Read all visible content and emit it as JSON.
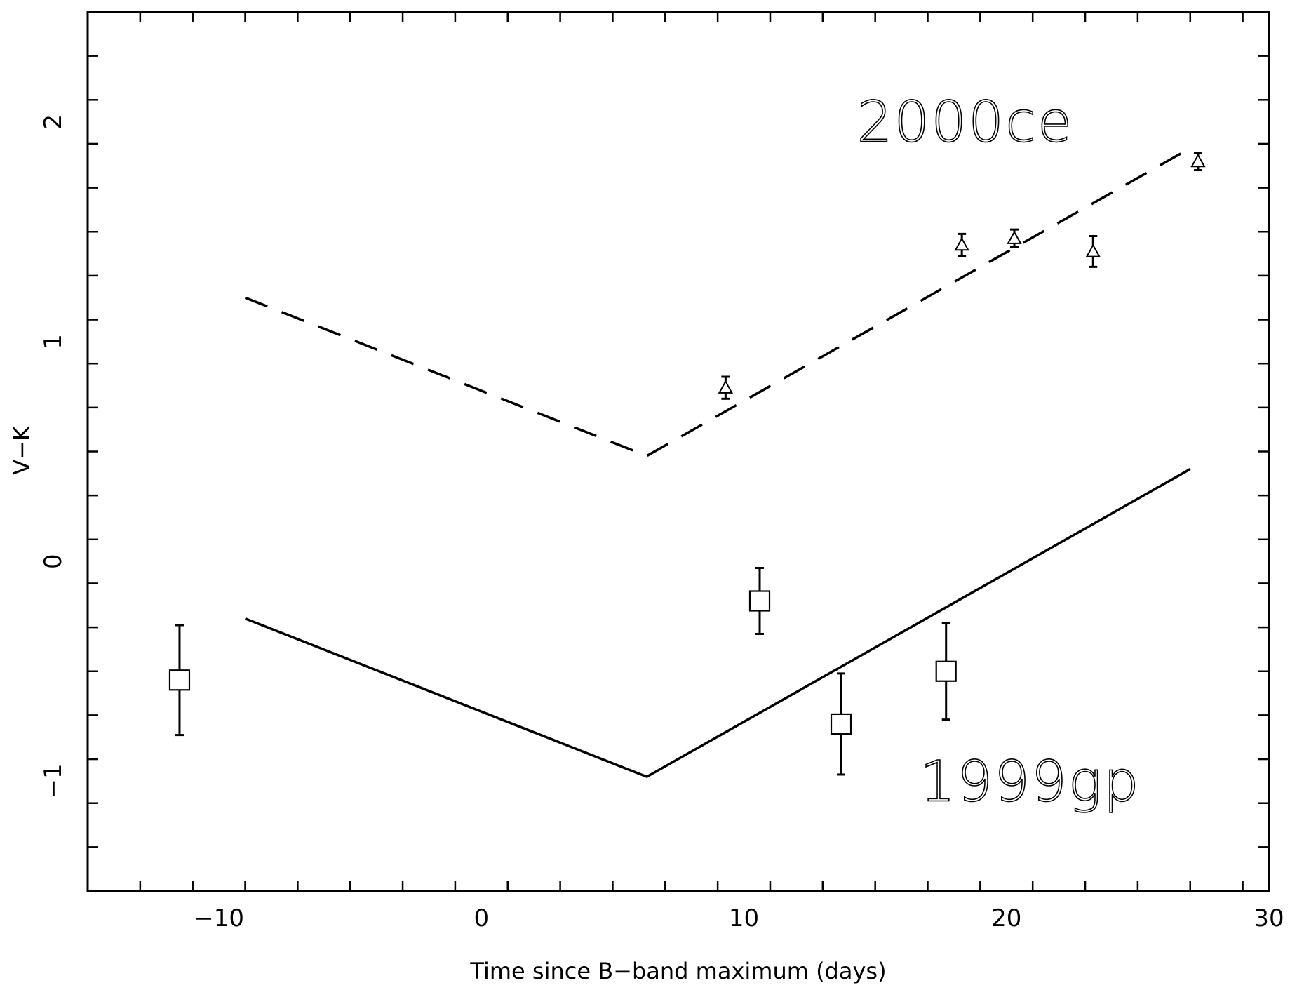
{
  "chart_data": {
    "type": "scatter",
    "title": "",
    "xlabel": "Time since B−band maximum (days)",
    "ylabel": "V−K",
    "xlim": [
      -15,
      30
    ],
    "ylim": [
      -1.5,
      2.5
    ],
    "x_ticks": [
      -10,
      0,
      10,
      20,
      30
    ],
    "x_tick_labels": [
      "−10",
      "0",
      "10",
      "20",
      "30"
    ],
    "y_ticks": [
      -1,
      0,
      1,
      2
    ],
    "y_tick_labels": [
      "−1",
      "0",
      "1",
      "2"
    ],
    "x_minor_step": 2,
    "y_minor_step": 0.2,
    "grid": false,
    "annotations": [
      {
        "text": "2000ce",
        "x": 14.3,
        "y": 2.0
      },
      {
        "text": "1999gp",
        "x": 16.7,
        "y": -1.0
      }
    ],
    "series": [
      {
        "marker": "triangle",
        "style": "errorbar",
        "points": [
          {
            "x": 9.3,
            "y": 0.79,
            "err": 0.05
          },
          {
            "x": 18.3,
            "y": 1.44,
            "err": 0.05
          },
          {
            "x": 20.3,
            "y": 1.47,
            "err": 0.04
          },
          {
            "x": 23.3,
            "y": 1.41,
            "err": 0.07
          },
          {
            "x": 27.3,
            "y": 1.82,
            "err": 0.04
          }
        ]
      },
      {
        "marker": "square",
        "style": "errorbar",
        "points": [
          {
            "x": -11.5,
            "y": -0.54,
            "err": 0.25
          },
          {
            "x": 10.6,
            "y": -0.18,
            "err": 0.15
          },
          {
            "x": 13.7,
            "y": -0.74,
            "err": 0.23
          },
          {
            "x": 17.7,
            "y": -0.5,
            "err": 0.22
          }
        ]
      },
      {
        "style": "line",
        "dash": "dashed",
        "x": [
          -9.0,
          6.3,
          27.0
        ],
        "y": [
          1.2,
          0.48,
          1.88
        ]
      },
      {
        "style": "line",
        "dash": "solid",
        "x": [
          -9.0,
          6.3,
          27.0
        ],
        "y": [
          -0.26,
          -0.98,
          0.42
        ]
      }
    ]
  }
}
